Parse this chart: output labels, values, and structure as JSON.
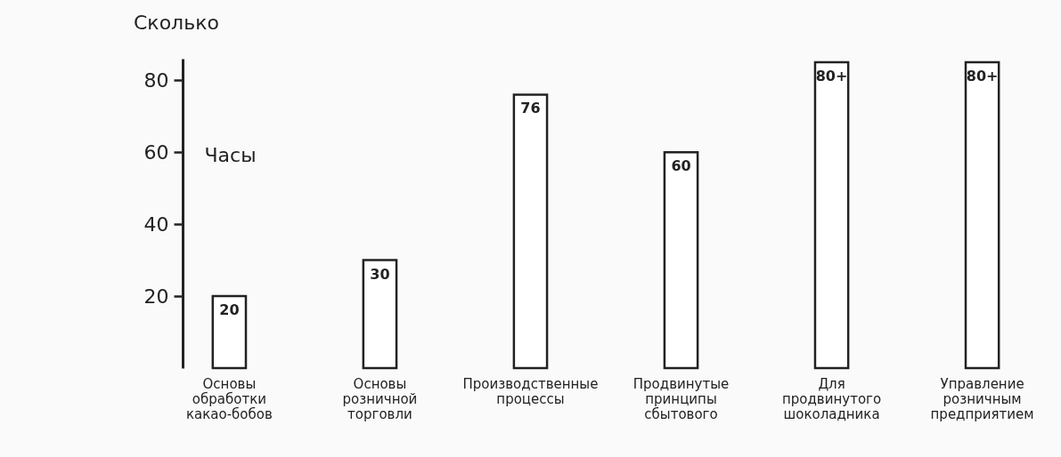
{
  "chart_data": {
    "type": "bar",
    "title": "Сколько",
    "ylabel": "Часы",
    "categories": [
      "Основы обработки какао-бобов",
      "Основы розничной торговли",
      "Производственные процессы",
      "Продвинутые принципы сбытового",
      "Для продвинутого шоколадника",
      "Управление розничным предприятием"
    ],
    "values": [
      20,
      30,
      76,
      60,
      85,
      85
    ],
    "value_labels": [
      "20",
      "30",
      "76",
      "60",
      "80+",
      "80+"
    ],
    "color": "#ffffff",
    "ylim": [
      0,
      86
    ],
    "yticks": [
      20,
      40,
      60,
      80
    ],
    "grid": false
  }
}
